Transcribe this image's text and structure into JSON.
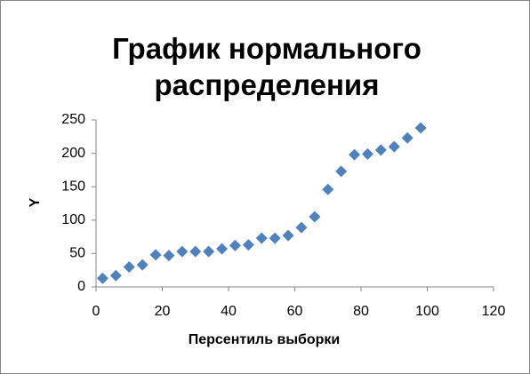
{
  "chart_data": {
    "type": "scatter",
    "title": "График нормального распределения",
    "x_label": "Персентиль выборки",
    "y_label": "Y",
    "x": [
      2,
      6,
      10,
      14,
      18,
      22,
      26,
      30,
      34,
      38,
      42,
      46,
      50,
      54,
      58,
      62,
      66,
      70,
      74,
      78,
      82,
      86,
      90,
      94,
      98
    ],
    "series": [
      {
        "color": "#4f81bd",
        "values": [
          13,
          17,
          30,
          33,
          48,
          47,
          53,
          53,
          53,
          57,
          62,
          63,
          73,
          73,
          77,
          89,
          105,
          146,
          173,
          198,
          199,
          205,
          210,
          223,
          238
        ]
      }
    ],
    "xlim": [
      0,
      120
    ],
    "xticks": [
      0,
      20,
      40,
      60,
      80,
      100,
      120
    ],
    "ylim": [
      0,
      250
    ],
    "yticks": [
      0,
      50,
      100,
      150,
      200,
      250
    ],
    "grid": false
  }
}
